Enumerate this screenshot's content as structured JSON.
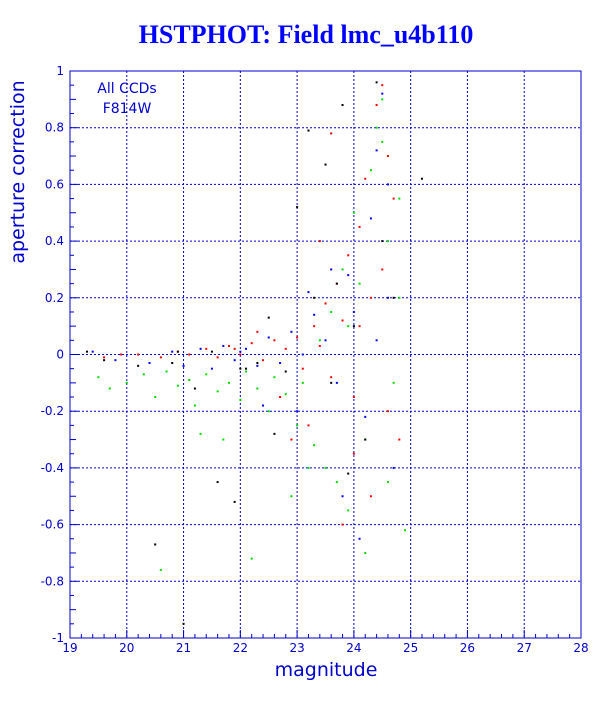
{
  "colors": {
    "axis": "#0000cc",
    "title": "#0000ff",
    "grid": "#0000cc",
    "series_blue": "#0000ff",
    "series_red": "#ff0000",
    "series_green": "#00dd00",
    "series_black": "#000000"
  },
  "chart_data": {
    "type": "scatter",
    "title": "HSTPHOT: Field lmc_u4b110",
    "xlabel": "magnitude",
    "ylabel": "aperture correction",
    "xlim": [
      19,
      28
    ],
    "ylim": [
      -1,
      1
    ],
    "grid": true,
    "annotation": [
      "All CCDs",
      "F814W"
    ],
    "x_ticks": [
      19,
      20,
      21,
      22,
      23,
      24,
      25,
      26,
      27,
      28
    ],
    "y_ticks": [
      -1,
      -0.8,
      -0.6,
      -0.4,
      -0.2,
      0,
      0.2,
      0.4,
      0.6,
      0.8,
      1
    ],
    "series": [
      {
        "color": "#ff0000",
        "points": [
          [
            19.6,
            -0.01
          ],
          [
            19.9,
            0.0
          ],
          [
            20.2,
            0.0
          ],
          [
            20.6,
            -0.01
          ],
          [
            20.9,
            0.01
          ],
          [
            21.1,
            0.0
          ],
          [
            21.4,
            0.02
          ],
          [
            21.6,
            -0.01
          ],
          [
            21.8,
            0.03
          ],
          [
            22.0,
            0.0
          ],
          [
            22.2,
            0.04
          ],
          [
            22.4,
            -0.02
          ],
          [
            22.6,
            0.05
          ],
          [
            22.8,
            0.02
          ],
          [
            23.0,
            0.06
          ],
          [
            23.1,
            -0.05
          ],
          [
            23.3,
            0.1
          ],
          [
            23.4,
            0.03
          ],
          [
            23.5,
            0.18
          ],
          [
            23.6,
            -0.08
          ],
          [
            23.7,
            0.25
          ],
          [
            23.8,
            0.12
          ],
          [
            23.9,
            0.35
          ],
          [
            24.0,
            -0.15
          ],
          [
            24.1,
            0.45
          ],
          [
            24.2,
            0.62
          ],
          [
            24.3,
            0.2
          ],
          [
            24.4,
            0.88
          ],
          [
            24.5,
            0.95
          ],
          [
            24.6,
            0.7
          ],
          [
            24.7,
            0.55
          ],
          [
            24.8,
            -0.3
          ],
          [
            24.0,
            -0.35
          ],
          [
            23.6,
            0.78
          ],
          [
            23.2,
            -0.25
          ],
          [
            22.9,
            -0.3
          ],
          [
            24.3,
            -0.5
          ],
          [
            24.5,
            0.3
          ],
          [
            22.3,
            0.08
          ],
          [
            21.9,
            0.02
          ],
          [
            23.8,
            -0.6
          ],
          [
            24.6,
            -0.2
          ],
          [
            24.1,
            0.1
          ],
          [
            23.4,
            0.4
          ],
          [
            22.7,
            -0.15
          ]
        ]
      },
      {
        "color": "#0000ff",
        "points": [
          [
            19.4,
            0.01
          ],
          [
            19.8,
            -0.02
          ],
          [
            20.4,
            -0.03
          ],
          [
            20.8,
            0.01
          ],
          [
            21.0,
            -0.04
          ],
          [
            21.3,
            0.02
          ],
          [
            21.5,
            -0.05
          ],
          [
            21.7,
            0.03
          ],
          [
            21.9,
            -0.02
          ],
          [
            22.1,
            0.02
          ],
          [
            22.3,
            -0.04
          ],
          [
            22.5,
            0.06
          ],
          [
            22.7,
            -0.03
          ],
          [
            22.9,
            0.08
          ],
          [
            23.1,
            0.0
          ],
          [
            23.3,
            0.14
          ],
          [
            23.5,
            0.05
          ],
          [
            23.7,
            -0.1
          ],
          [
            23.9,
            0.28
          ],
          [
            24.0,
            0.15
          ],
          [
            24.2,
            -0.22
          ],
          [
            24.3,
            0.48
          ],
          [
            24.4,
            0.72
          ],
          [
            24.5,
            0.92
          ],
          [
            24.6,
            0.2
          ],
          [
            24.7,
            -0.4
          ],
          [
            23.6,
            0.3
          ],
          [
            23.8,
            -0.5
          ],
          [
            24.1,
            -0.65
          ],
          [
            22.4,
            -0.18
          ],
          [
            23.0,
            -0.2
          ],
          [
            24.4,
            0.05
          ],
          [
            22.0,
            0.01
          ],
          [
            23.2,
            0.22
          ],
          [
            24.6,
            0.6
          ]
        ]
      },
      {
        "color": "#00dd00",
        "points": [
          [
            19.5,
            -0.08
          ],
          [
            19.7,
            -0.12
          ],
          [
            20.0,
            -0.1
          ],
          [
            20.3,
            -0.07
          ],
          [
            20.5,
            -0.15
          ],
          [
            20.7,
            -0.06
          ],
          [
            20.9,
            -0.11
          ],
          [
            21.1,
            -0.09
          ],
          [
            21.2,
            -0.18
          ],
          [
            21.4,
            -0.07
          ],
          [
            21.6,
            -0.13
          ],
          [
            21.8,
            -0.1
          ],
          [
            22.0,
            -0.16
          ],
          [
            22.1,
            -0.06
          ],
          [
            22.3,
            -0.12
          ],
          [
            22.5,
            -0.2
          ],
          [
            22.6,
            -0.08
          ],
          [
            22.8,
            -0.14
          ],
          [
            23.0,
            -0.25
          ],
          [
            23.1,
            -0.1
          ],
          [
            23.3,
            -0.32
          ],
          [
            23.4,
            0.05
          ],
          [
            23.5,
            -0.4
          ],
          [
            23.6,
            0.15
          ],
          [
            23.7,
            -0.45
          ],
          [
            23.8,
            0.3
          ],
          [
            23.9,
            -0.55
          ],
          [
            24.0,
            0.5
          ],
          [
            24.1,
            0.25
          ],
          [
            24.2,
            -0.3
          ],
          [
            24.3,
            0.65
          ],
          [
            24.4,
            0.8
          ],
          [
            24.5,
            0.9
          ],
          [
            24.6,
            0.4
          ],
          [
            24.7,
            -0.1
          ],
          [
            24.8,
            0.55
          ],
          [
            24.9,
            -0.62
          ],
          [
            22.2,
            -0.72
          ],
          [
            20.6,
            -0.76
          ],
          [
            21.3,
            -0.28
          ],
          [
            22.9,
            -0.5
          ],
          [
            24.2,
            -0.7
          ],
          [
            23.2,
            -0.4
          ],
          [
            24.5,
            0.75
          ],
          [
            24.8,
            0.2
          ],
          [
            21.7,
            -0.3
          ],
          [
            23.9,
            0.1
          ],
          [
            24.6,
            -0.45
          ]
        ]
      },
      {
        "color": "#000000",
        "points": [
          [
            19.3,
            0.01
          ],
          [
            19.6,
            -0.02
          ],
          [
            20.2,
            -0.04
          ],
          [
            20.5,
            -0.67
          ],
          [
            20.8,
            -0.03
          ],
          [
            21.2,
            -0.12
          ],
          [
            21.5,
            0.01
          ],
          [
            21.6,
            -0.45
          ],
          [
            21.9,
            -0.52
          ],
          [
            22.0,
            -0.05
          ],
          [
            22.3,
            -0.03
          ],
          [
            22.5,
            0.13
          ],
          [
            22.8,
            -0.06
          ],
          [
            23.0,
            0.52
          ],
          [
            23.2,
            0.79
          ],
          [
            23.3,
            0.2
          ],
          [
            23.5,
            0.67
          ],
          [
            23.6,
            -0.1
          ],
          [
            23.8,
            0.88
          ],
          [
            23.9,
            -0.42
          ],
          [
            24.0,
            0.1
          ],
          [
            24.2,
            -0.3
          ],
          [
            24.4,
            0.96
          ],
          [
            24.5,
            0.4
          ],
          [
            24.7,
            0.2
          ],
          [
            25.2,
            0.62
          ],
          [
            21.0,
            -0.95
          ],
          [
            20.9,
            0.01
          ],
          [
            22.1,
            -0.05
          ],
          [
            23.7,
            0.25
          ],
          [
            22.6,
            -0.28
          ]
        ]
      }
    ]
  }
}
